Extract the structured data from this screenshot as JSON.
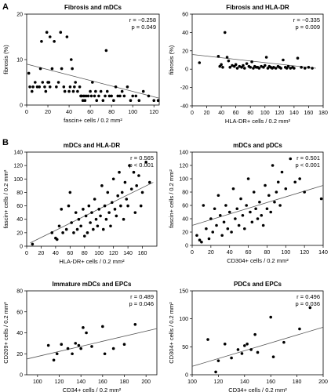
{
  "panel_labels": {
    "a": "A",
    "b": "B"
  },
  "chart_data": [
    {
      "id": "fibrosis-mdcs",
      "type": "scatter",
      "title": "Fibrosis and mDCs",
      "xlabel": "fascin+ cells / 0.2 mm²",
      "ylabel": "fibrosis (%)",
      "xlim": [
        0,
        125
      ],
      "ylim": [
        0,
        20
      ],
      "xticks": [
        0,
        20,
        40,
        60,
        80,
        100,
        120
      ],
      "yticks": [
        0,
        10,
        20
      ],
      "annotation": [
        "r = −0.258",
        "p = 0.049"
      ],
      "fit": {
        "x": [
          0,
          125
        ],
        "y": [
          9,
          1.5
        ]
      },
      "points": [
        [
          2,
          7
        ],
        [
          3,
          4
        ],
        [
          5,
          3
        ],
        [
          6,
          4
        ],
        [
          8,
          5
        ],
        [
          10,
          4
        ],
        [
          12,
          4
        ],
        [
          13,
          8
        ],
        [
          14,
          14
        ],
        [
          15,
          5
        ],
        [
          17,
          4
        ],
        [
          18,
          3
        ],
        [
          19,
          16
        ],
        [
          20,
          5
        ],
        [
          21,
          5
        ],
        [
          22,
          4
        ],
        [
          22,
          15
        ],
        [
          24,
          8
        ],
        [
          26,
          14
        ],
        [
          28,
          4
        ],
        [
          30,
          5
        ],
        [
          32,
          16
        ],
        [
          33,
          8
        ],
        [
          35,
          4
        ],
        [
          36,
          3
        ],
        [
          38,
          15
        ],
        [
          40,
          3
        ],
        [
          41,
          4
        ],
        [
          42,
          10
        ],
        [
          43,
          8
        ],
        [
          44,
          3
        ],
        [
          45,
          4
        ],
        [
          46,
          5
        ],
        [
          48,
          3
        ],
        [
          50,
          4
        ],
        [
          51,
          2
        ],
        [
          52,
          2
        ],
        [
          53,
          1
        ],
        [
          54,
          2
        ],
        [
          55,
          1
        ],
        [
          56,
          2
        ],
        [
          58,
          2
        ],
        [
          60,
          3
        ],
        [
          61,
          2
        ],
        [
          62,
          5
        ],
        [
          64,
          2
        ],
        [
          65,
          3
        ],
        [
          66,
          1
        ],
        [
          68,
          2
        ],
        [
          70,
          3
        ],
        [
          72,
          1
        ],
        [
          74,
          2
        ],
        [
          75,
          12
        ],
        [
          76,
          3
        ],
        [
          78,
          2
        ],
        [
          80,
          2
        ],
        [
          82,
          1
        ],
        [
          84,
          4
        ],
        [
          86,
          2
        ],
        [
          88,
          2
        ],
        [
          90,
          3
        ],
        [
          92,
          2
        ],
        [
          95,
          4
        ],
        [
          98,
          1
        ],
        [
          100,
          2
        ],
        [
          103,
          2
        ],
        [
          106,
          1
        ],
        [
          110,
          3
        ],
        [
          115,
          2
        ],
        [
          120,
          1
        ],
        [
          124,
          1
        ]
      ]
    },
    {
      "id": "fibrosis-hladr",
      "type": "scatter",
      "title": "Fibrosis and HLA-DR",
      "xlabel": "HLA-DR+ cells / 0.2 mm²",
      "ylabel": "fibrosis (%)",
      "xlim": [
        0,
        180
      ],
      "ylim": [
        -40,
        60
      ],
      "xticks": [
        0,
        20,
        40,
        60,
        80,
        100,
        120,
        140,
        160,
        180
      ],
      "yticks": [
        -40,
        -20,
        0,
        20,
        40,
        60
      ],
      "annotation": [
        "r = −0.335",
        "p = 0.009"
      ],
      "fit": {
        "x": [
          0,
          170
        ],
        "y": [
          16,
          1
        ]
      },
      "points": [
        [
          10,
          7
        ],
        [
          36,
          14
        ],
        [
          38,
          3
        ],
        [
          40,
          5
        ],
        [
          42,
          2
        ],
        [
          45,
          40
        ],
        [
          48,
          13
        ],
        [
          50,
          9
        ],
        [
          52,
          2
        ],
        [
          55,
          4
        ],
        [
          58,
          3
        ],
        [
          60,
          5
        ],
        [
          62,
          1
        ],
        [
          65,
          3
        ],
        [
          68,
          2
        ],
        [
          70,
          4
        ],
        [
          72,
          1
        ],
        [
          75,
          6
        ],
        [
          78,
          3
        ],
        [
          80,
          2
        ],
        [
          82,
          8
        ],
        [
          84,
          1
        ],
        [
          86,
          3
        ],
        [
          88,
          2
        ],
        [
          90,
          2
        ],
        [
          92,
          1
        ],
        [
          95,
          3
        ],
        [
          98,
          2
        ],
        [
          100,
          4
        ],
        [
          102,
          13
        ],
        [
          104,
          1
        ],
        [
          106,
          3
        ],
        [
          108,
          2
        ],
        [
          110,
          1
        ],
        [
          112,
          2
        ],
        [
          115,
          1
        ],
        [
          118,
          3
        ],
        [
          120,
          2
        ],
        [
          122,
          1
        ],
        [
          125,
          10
        ],
        [
          128,
          2
        ],
        [
          130,
          1
        ],
        [
          132,
          3
        ],
        [
          135,
          1
        ],
        [
          138,
          2
        ],
        [
          140,
          1
        ],
        [
          145,
          12
        ],
        [
          150,
          2
        ],
        [
          155,
          1
        ],
        [
          160,
          2
        ],
        [
          165,
          1
        ]
      ]
    },
    {
      "id": "mdcs-hladr",
      "type": "scatter",
      "title": "mDCs and HLA-DR",
      "xlabel": "HLA-DR+ cells / 0.2 mm²",
      "ylabel": "fascin+ cells / 0.2 mm²",
      "xlim": [
        0,
        180
      ],
      "ylim": [
        0,
        140
      ],
      "xticks": [
        0,
        20,
        40,
        60,
        80,
        100,
        120,
        140,
        160
      ],
      "yticks": [
        0,
        20,
        40,
        60,
        80,
        100,
        120,
        140
      ],
      "annotation": [
        "r = 0.565",
        "p < 0.001"
      ],
      "fit": {
        "x": [
          5,
          175
        ],
        "y": [
          5,
          95
        ]
      },
      "points": [
        [
          8,
          3
        ],
        [
          35,
          20
        ],
        [
          40,
          12
        ],
        [
          42,
          10
        ],
        [
          45,
          30
        ],
        [
          48,
          55
        ],
        [
          50,
          20
        ],
        [
          55,
          25
        ],
        [
          58,
          60
        ],
        [
          60,
          80
        ],
        [
          62,
          35
        ],
        [
          65,
          20
        ],
        [
          68,
          50
        ],
        [
          70,
          25
        ],
        [
          72,
          40
        ],
        [
          75,
          30
        ],
        [
          78,
          55
        ],
        [
          80,
          15
        ],
        [
          82,
          45
        ],
        [
          84,
          20
        ],
        [
          86,
          60
        ],
        [
          88,
          35
        ],
        [
          90,
          50
        ],
        [
          92,
          25
        ],
        [
          94,
          70
        ],
        [
          96,
          40
        ],
        [
          98,
          30
        ],
        [
          100,
          55
        ],
        [
          102,
          45
        ],
        [
          104,
          90
        ],
        [
          106,
          25
        ],
        [
          108,
          60
        ],
        [
          110,
          40
        ],
        [
          112,
          80
        ],
        [
          114,
          50
        ],
        [
          116,
          30
        ],
        [
          118,
          65
        ],
        [
          120,
          100
        ],
        [
          122,
          55
        ],
        [
          124,
          45
        ],
        [
          126,
          75
        ],
        [
          128,
          110
        ],
        [
          130,
          60
        ],
        [
          132,
          80
        ],
        [
          134,
          40
        ],
        [
          136,
          95
        ],
        [
          138,
          70
        ],
        [
          140,
          60
        ],
        [
          142,
          120
        ],
        [
          145,
          85
        ],
        [
          148,
          110
        ],
        [
          150,
          50
        ],
        [
          152,
          90
        ],
        [
          155,
          105
        ],
        [
          158,
          60
        ],
        [
          160,
          80
        ],
        [
          165,
          125
        ],
        [
          170,
          95
        ]
      ]
    },
    {
      "id": "mdcs-pdcs",
      "type": "scatter",
      "title": "mDCs and pDCs",
      "xlabel": "CD304+ cells / 0.2 mm²",
      "ylabel": "fascin+ cells / 0.2 mm²",
      "xlim": [
        0,
        140
      ],
      "ylim": [
        0,
        140
      ],
      "xticks": [
        0,
        20,
        40,
        60,
        80,
        100,
        120,
        140
      ],
      "yticks": [
        0,
        20,
        40,
        60,
        80,
        100,
        120,
        140
      ],
      "annotation": [
        "r = 0.501",
        "p < 0.001"
      ],
      "fit": {
        "x": [
          0,
          140
        ],
        "y": [
          30,
          90
        ]
      },
      "points": [
        [
          5,
          15
        ],
        [
          8,
          8
        ],
        [
          10,
          5
        ],
        [
          12,
          60
        ],
        [
          15,
          25
        ],
        [
          18,
          10
        ],
        [
          20,
          40
        ],
        [
          22,
          20
        ],
        [
          24,
          55
        ],
        [
          26,
          30
        ],
        [
          28,
          75
        ],
        [
          30,
          45
        ],
        [
          32,
          15
        ],
        [
          34,
          35
        ],
        [
          36,
          60
        ],
        [
          38,
          25
        ],
        [
          40,
          50
        ],
        [
          42,
          20
        ],
        [
          44,
          85
        ],
        [
          46,
          40
        ],
        [
          48,
          55
        ],
        [
          50,
          30
        ],
        [
          52,
          70
        ],
        [
          54,
          45
        ],
        [
          56,
          25
        ],
        [
          58,
          60
        ],
        [
          60,
          100
        ],
        [
          62,
          50
        ],
        [
          64,
          35
        ],
        [
          66,
          80
        ],
        [
          68,
          55
        ],
        [
          70,
          40
        ],
        [
          72,
          65
        ],
        [
          74,
          45
        ],
        [
          76,
          30
        ],
        [
          78,
          90
        ],
        [
          80,
          55
        ],
        [
          82,
          75
        ],
        [
          84,
          50
        ],
        [
          86,
          120
        ],
        [
          88,
          65
        ],
        [
          90,
          80
        ],
        [
          92,
          95
        ],
        [
          94,
          60
        ],
        [
          96,
          110
        ],
        [
          100,
          85
        ],
        [
          105,
          130
        ],
        [
          110,
          95
        ],
        [
          115,
          100
        ],
        [
          120,
          80
        ],
        [
          138,
          70
        ]
      ]
    },
    {
      "id": "immature-mdcs-epcs",
      "type": "scatter",
      "title": "Immature mDCs and EPCs",
      "xlabel": "CD34+ cells / 0.2 mm²",
      "ylabel": "CD209+ cells / 0.2 mm²",
      "xlim": [
        90,
        210
      ],
      "ylim": [
        0,
        80
      ],
      "xticks": [
        100,
        120,
        140,
        160,
        180,
        200
      ],
      "yticks": [
        0,
        20,
        40,
        60,
        80
      ],
      "annotation": [
        "r = 0.489",
        "p = 0.046"
      ],
      "fit": {
        "x": [
          90,
          210
        ],
        "y": [
          15,
          44
        ]
      },
      "points": [
        [
          110,
          28
        ],
        [
          115,
          14
        ],
        [
          118,
          20
        ],
        [
          122,
          29
        ],
        [
          128,
          25
        ],
        [
          132,
          20
        ],
        [
          135,
          30
        ],
        [
          138,
          28
        ],
        [
          140,
          25
        ],
        [
          142,
          45
        ],
        [
          145,
          40
        ],
        [
          150,
          27
        ],
        [
          160,
          46
        ],
        [
          162,
          20
        ],
        [
          170,
          25
        ],
        [
          180,
          29
        ],
        [
          190,
          48
        ]
      ]
    },
    {
      "id": "pdcs-epcs",
      "type": "scatter",
      "title": "PDCs and EPCs",
      "xlabel": "CD34+ cells / 0.2 mm²",
      "ylabel": "CD304+ cells / 0.2 mm²",
      "xlim": [
        100,
        200
      ],
      "ylim": [
        0,
        150
      ],
      "xticks": [
        100,
        120,
        140,
        160,
        180,
        200
      ],
      "yticks": [
        0,
        50,
        100,
        150
      ],
      "annotation": [
        "r = 0.496",
        "p = 0.036"
      ],
      "fit": {
        "x": [
          100,
          200
        ],
        "y": [
          15,
          85
        ]
      },
      "points": [
        [
          112,
          63
        ],
        [
          118,
          5
        ],
        [
          120,
          25
        ],
        [
          125,
          55
        ],
        [
          130,
          30
        ],
        [
          135,
          45
        ],
        [
          138,
          38
        ],
        [
          140,
          52
        ],
        [
          142,
          55
        ],
        [
          145,
          45
        ],
        [
          148,
          72
        ],
        [
          150,
          40
        ],
        [
          160,
          103
        ],
        [
          162,
          32
        ],
        [
          170,
          58
        ],
        [
          182,
          82
        ],
        [
          190,
          120
        ]
      ]
    }
  ]
}
